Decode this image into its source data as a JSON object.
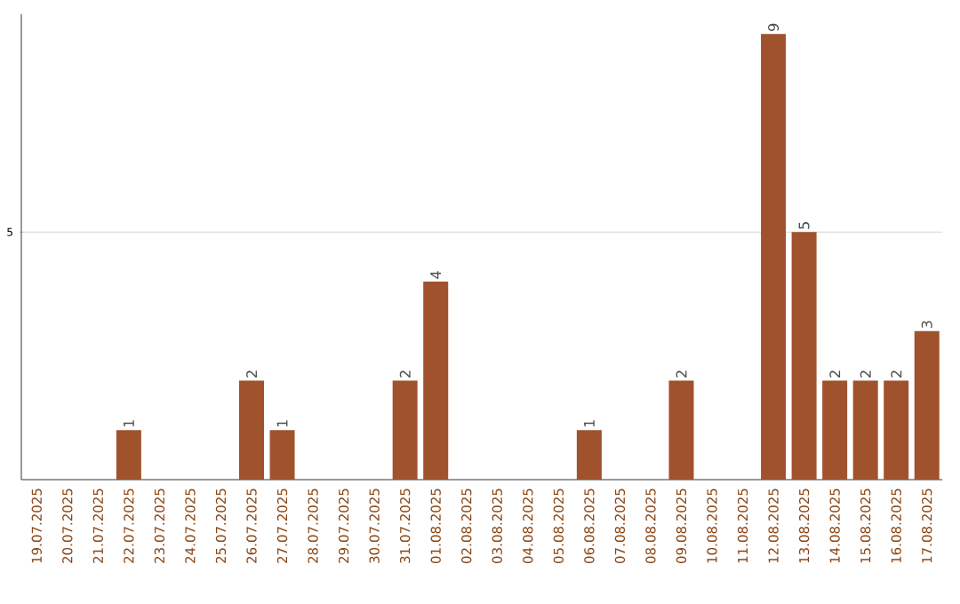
{
  "chart_data": {
    "type": "bar",
    "categories": [
      "19.07.2025",
      "20.07.2025",
      "21.07.2025",
      "22.07.2025",
      "23.07.2025",
      "24.07.2025",
      "25.07.2025",
      "26.07.2025",
      "27.07.2025",
      "28.07.2025",
      "29.07.2025",
      "30.07.2025",
      "31.07.2025",
      "01.08.2025",
      "02.08.2025",
      "03.08.2025",
      "04.08.2025",
      "05.08.2025",
      "06.08.2025",
      "07.08.2025",
      "08.08.2025",
      "09.08.2025",
      "10.08.2025",
      "11.08.2025",
      "12.08.2025",
      "13.08.2025",
      "14.08.2025",
      "15.08.2025",
      "16.08.2025",
      "17.08.2025"
    ],
    "values": [
      0,
      0,
      0,
      1,
      0,
      0,
      0,
      2,
      1,
      0,
      0,
      0,
      2,
      4,
      0,
      0,
      0,
      0,
      1,
      0,
      0,
      2,
      0,
      0,
      9,
      5,
      2,
      2,
      2,
      3
    ],
    "value_labels": [
      null,
      null,
      null,
      "1",
      null,
      null,
      null,
      "2",
      "1",
      null,
      null,
      null,
      "2",
      "4",
      null,
      null,
      null,
      null,
      "1",
      null,
      null,
      "2",
      null,
      null,
      "9",
      "5",
      "2",
      "2",
      "2",
      "3"
    ],
    "color": "#a0522d",
    "ylim": [
      0,
      9.4
    ],
    "yticks": [
      5
    ],
    "grid": "y"
  }
}
